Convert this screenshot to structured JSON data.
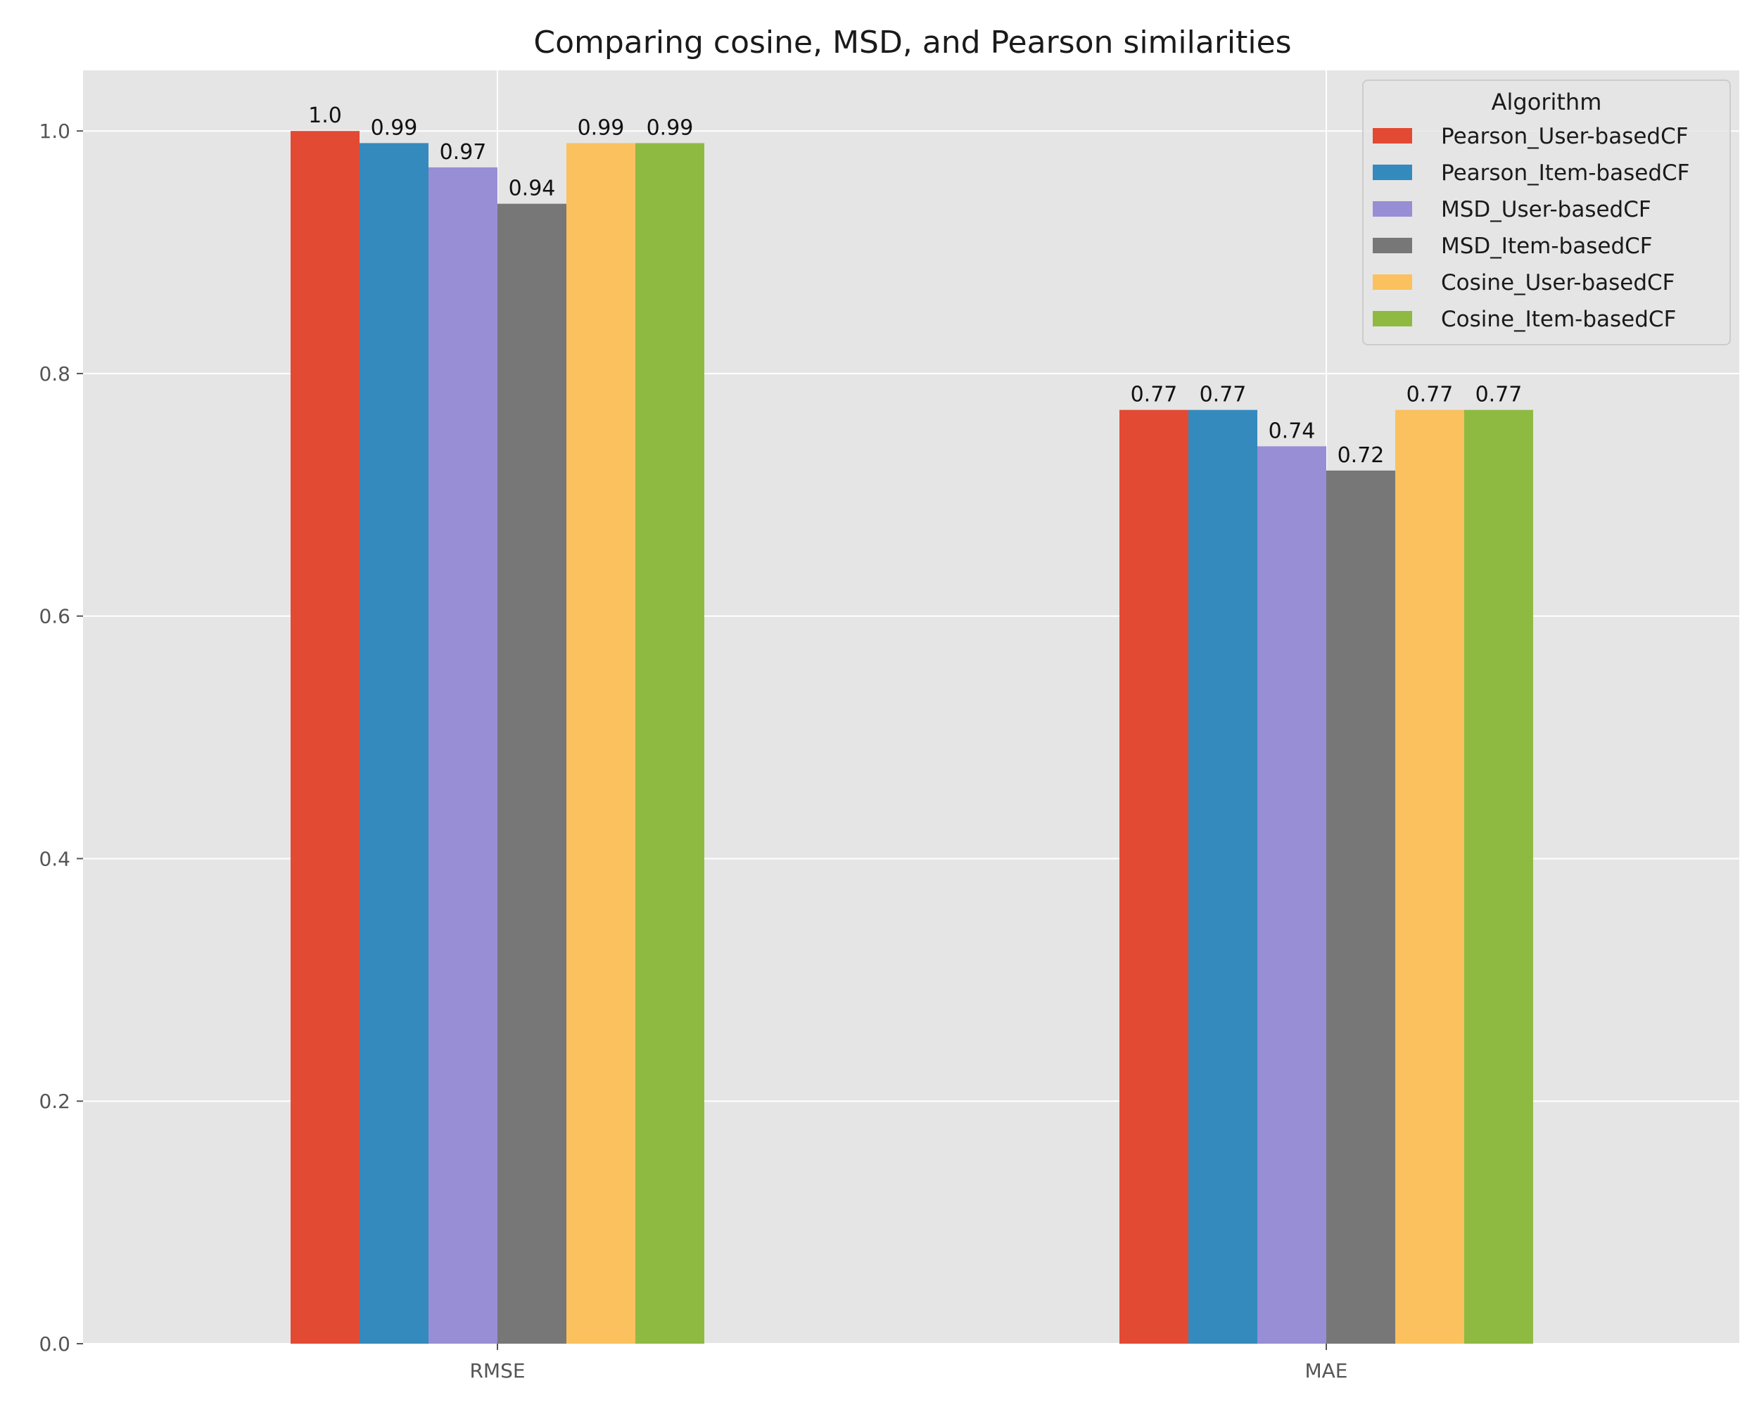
{
  "chart_data": {
    "type": "bar",
    "title": "Comparing cosine, MSD, and Pearson similarities",
    "xlabel": "",
    "ylabel": "",
    "categories": [
      "RMSE",
      "MAE"
    ],
    "ylim": [
      0,
      1.05
    ],
    "yticks": [
      "0.0",
      "0.2",
      "0.4",
      "0.6",
      "0.8",
      "1.0"
    ],
    "grid": true,
    "legend": {
      "title": "Algorithm",
      "placement": "top-right"
    },
    "series": [
      {
        "name": "Pearson_User-basedCF",
        "color": "#E24A33",
        "values": [
          1.0,
          0.77
        ],
        "labels": [
          "1.0",
          "0.77"
        ]
      },
      {
        "name": "Pearson_Item-basedCF",
        "color": "#348ABD",
        "values": [
          0.99,
          0.77
        ],
        "labels": [
          "0.99",
          "0.77"
        ]
      },
      {
        "name": "MSD_User-basedCF",
        "color": "#988ED5",
        "values": [
          0.97,
          0.74
        ],
        "labels": [
          "0.97",
          "0.74"
        ]
      },
      {
        "name": "MSD_Item-basedCF",
        "color": "#777777",
        "values": [
          0.94,
          0.72
        ],
        "labels": [
          "0.94",
          "0.72"
        ]
      },
      {
        "name": "Cosine_User-basedCF",
        "color": "#FBC15E",
        "values": [
          0.99,
          0.77
        ],
        "labels": [
          "0.99",
          "0.77"
        ]
      },
      {
        "name": "Cosine_Item-basedCF",
        "color": "#8EBA42",
        "values": [
          0.99,
          0.77
        ],
        "labels": [
          "0.99",
          "0.77"
        ]
      }
    ]
  }
}
